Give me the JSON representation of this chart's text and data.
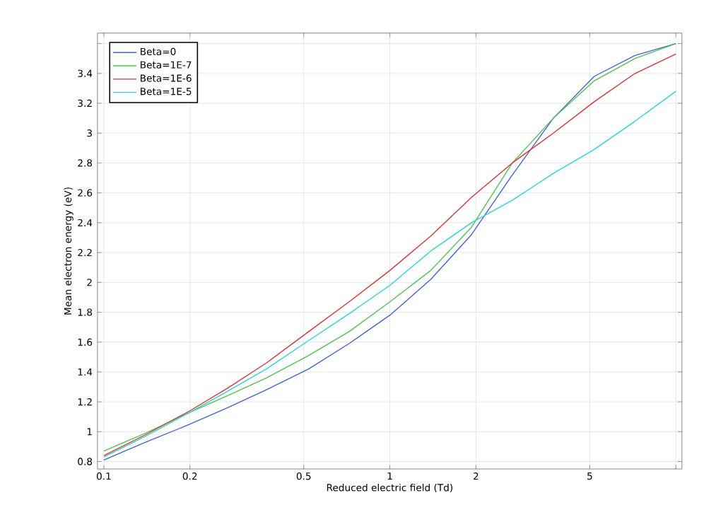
{
  "chart_data": {
    "type": "line",
    "xlabel": "Reduced electric field (Td)",
    "ylabel": "Mean electron energy (eV)",
    "log": "x",
    "grid": true,
    "legend": "top left",
    "line_style": "solid",
    "marker": "none",
    "x": [
      0.1,
      0.14,
      0.2,
      0.27,
      0.37,
      0.52,
      0.72,
      1,
      1.39,
      1.93,
      2.68,
      3.73,
      5.18,
      7.2,
      10
    ],
    "xlim": [
      0.095,
      10.5
    ],
    "ylim": [
      0.75,
      3.67
    ],
    "xticks": [
      0.1,
      0.2,
      0.5,
      1,
      2,
      5,
      {
        "value": 10,
        "label": null
      }
    ],
    "yticks": [
      0.8,
      1,
      1.2,
      1.4,
      1.6,
      1.8,
      2,
      2.2,
      2.4,
      2.6,
      2.8,
      3,
      3.2,
      3.4,
      {
        "value": 3.6,
        "label": null
      }
    ],
    "series": [
      {
        "name": "Beta=0",
        "color": "#3f5fe6",
        "values": [
          0.81,
          0.93,
          1.05,
          1.16,
          1.28,
          1.42,
          1.59,
          1.78,
          2.02,
          2.32,
          2.72,
          3.1,
          3.38,
          3.52,
          3.6
        ]
      },
      {
        "name": "Beta=1E-7",
        "color": "#4cc24c",
        "values": [
          0.87,
          0.99,
          1.13,
          1.24,
          1.36,
          1.51,
          1.67,
          1.87,
          2.08,
          2.37,
          2.8,
          3.1,
          3.35,
          3.5,
          3.6
        ]
      },
      {
        "name": "Beta=1E-6",
        "color": "#e03030",
        "values": [
          0.84,
          0.98,
          1.14,
          1.29,
          1.46,
          1.67,
          1.87,
          2.08,
          2.31,
          2.57,
          2.8,
          3.0,
          3.21,
          3.4,
          3.53
        ]
      },
      {
        "name": "Beta=1E-5",
        "color": "#22d6d6",
        "values": [
          0.83,
          0.97,
          1.13,
          1.27,
          1.42,
          1.61,
          1.79,
          1.98,
          2.21,
          2.4,
          2.55,
          2.73,
          2.89,
          3.08,
          3.28
        ]
      }
    ]
  }
}
